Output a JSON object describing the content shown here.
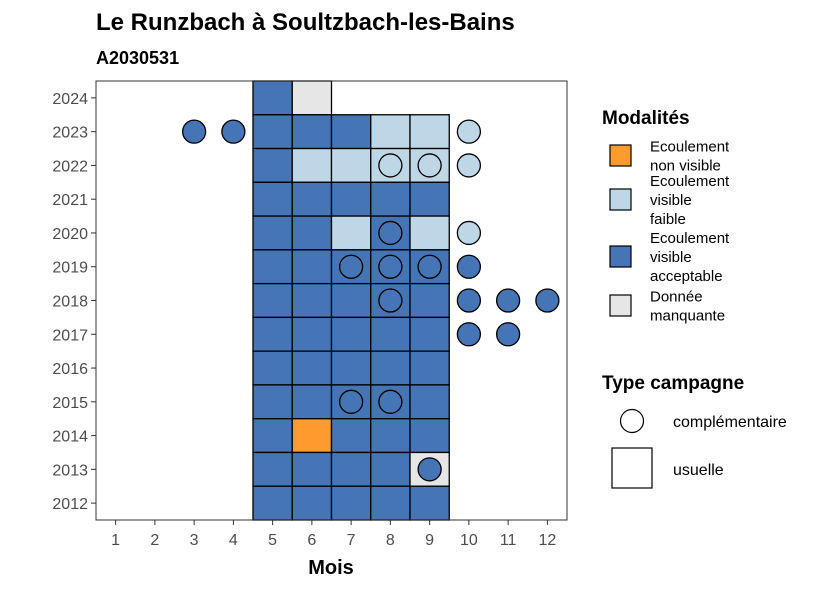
{
  "title": "Le Runzbach à Soultzbach-les-Bains",
  "subtitle": "A2030531",
  "colors": {
    "non_visible": "#FE9A2E",
    "faible": "#BDD7E7",
    "acceptable": "#4575B4",
    "manquante": "#E6E6E6",
    "border": "#000000",
    "axis_text": "#4D4D4D"
  },
  "legend": {
    "modalites_title": "Modalités",
    "modalites": [
      {
        "key": "non_visible",
        "lines": [
          "Ecoulement",
          "non visible"
        ]
      },
      {
        "key": "faible",
        "lines": [
          "Ecoulement",
          "visible",
          "faible"
        ]
      },
      {
        "key": "acceptable",
        "lines": [
          "Ecoulement",
          "visible",
          "acceptable"
        ]
      },
      {
        "key": "manquante",
        "lines": [
          "Donnée",
          "manquante"
        ]
      }
    ],
    "campagne_title": "Type campagne",
    "campagnes": [
      {
        "key": "complementaire",
        "label": "complémentaire"
      },
      {
        "key": "usuelle",
        "label": "usuelle"
      }
    ]
  },
  "chart_data": {
    "type": "heatmap",
    "xlabel": "Mois",
    "ylabel": "",
    "x_ticks": [
      1,
      2,
      3,
      4,
      5,
      6,
      7,
      8,
      9,
      10,
      11,
      12
    ],
    "y_ticks": [
      2012,
      2013,
      2014,
      2015,
      2016,
      2017,
      2018,
      2019,
      2020,
      2021,
      2022,
      2023,
      2024
    ],
    "xlim": [
      0.5,
      12.5
    ],
    "ylim": [
      2011.5,
      2024.5
    ],
    "grid": false,
    "legend_position": "right",
    "usuelle": [
      {
        "year": 2024,
        "months": [
          "A",
          "M",
          null,
          null,
          null
        ]
      },
      {
        "year": 2023,
        "months": [
          "A",
          "A",
          "A",
          "F",
          "F"
        ]
      },
      {
        "year": 2022,
        "months": [
          "A",
          "F",
          "F",
          "F",
          "F"
        ]
      },
      {
        "year": 2021,
        "months": [
          "A",
          "A",
          "A",
          "A",
          "A"
        ]
      },
      {
        "year": 2020,
        "months": [
          "A",
          "A",
          "F",
          "A",
          "F"
        ]
      },
      {
        "year": 2019,
        "months": [
          "A",
          "A",
          "A",
          "A",
          "A"
        ]
      },
      {
        "year": 2018,
        "months": [
          "A",
          "A",
          "A",
          "A",
          "A"
        ]
      },
      {
        "year": 2017,
        "months": [
          "A",
          "A",
          "A",
          "A",
          "A"
        ]
      },
      {
        "year": 2016,
        "months": [
          "A",
          "A",
          "A",
          "A",
          "A"
        ]
      },
      {
        "year": 2015,
        "months": [
          "A",
          "A",
          "A",
          "A",
          "A"
        ]
      },
      {
        "year": 2014,
        "months": [
          "A",
          "N",
          "A",
          "A",
          "A"
        ]
      },
      {
        "year": 2013,
        "months": [
          "A",
          "A",
          "A",
          "A",
          "M"
        ]
      },
      {
        "year": 2012,
        "months": [
          "A",
          "A",
          "A",
          "A",
          "A"
        ]
      }
    ],
    "usuelle_first_month": 5,
    "complementaire": [
      {
        "year": 2023,
        "month": 3,
        "v": "A"
      },
      {
        "year": 2023,
        "month": 4,
        "v": "A"
      },
      {
        "year": 2023,
        "month": 10,
        "v": "F"
      },
      {
        "year": 2022,
        "month": 8,
        "v": "F"
      },
      {
        "year": 2022,
        "month": 9,
        "v": "F"
      },
      {
        "year": 2022,
        "month": 10,
        "v": "F"
      },
      {
        "year": 2020,
        "month": 8,
        "v": "A"
      },
      {
        "year": 2020,
        "month": 10,
        "v": "F"
      },
      {
        "year": 2019,
        "month": 7,
        "v": "A"
      },
      {
        "year": 2019,
        "month": 8,
        "v": "A"
      },
      {
        "year": 2019,
        "month": 9,
        "v": "A"
      },
      {
        "year": 2019,
        "month": 10,
        "v": "A"
      },
      {
        "year": 2018,
        "month": 8,
        "v": "A"
      },
      {
        "year": 2018,
        "month": 10,
        "v": "A"
      },
      {
        "year": 2018,
        "month": 11,
        "v": "A"
      },
      {
        "year": 2018,
        "month": 12,
        "v": "A"
      },
      {
        "year": 2017,
        "month": 10,
        "v": "A"
      },
      {
        "year": 2017,
        "month": 11,
        "v": "A"
      },
      {
        "year": 2015,
        "month": 7,
        "v": "A"
      },
      {
        "year": 2015,
        "month": 8,
        "v": "A"
      },
      {
        "year": 2013,
        "month": 9,
        "v": "A"
      }
    ],
    "value_keys": {
      "A": "acceptable",
      "F": "faible",
      "N": "non_visible",
      "M": "manquante"
    }
  }
}
